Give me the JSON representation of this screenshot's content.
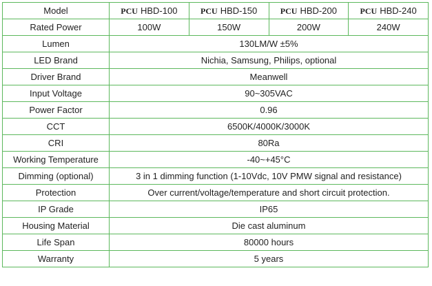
{
  "table": {
    "header": {
      "label": "Model",
      "models": [
        {
          "brand": "PCU",
          "name": "HBD-100"
        },
        {
          "brand": "PCU",
          "name": "HBD-150"
        },
        {
          "brand": "PCU",
          "name": "HBD-200"
        },
        {
          "brand": "PCU",
          "name": "HBD-240"
        }
      ]
    },
    "rows": [
      {
        "label": "Rated Power",
        "values": [
          "100W",
          "150W",
          "200W",
          "240W"
        ]
      },
      {
        "label": "Lumen",
        "values": [
          "130LM/W ±5%"
        ]
      },
      {
        "label": "LED Brand",
        "values": [
          "Nichia, Samsung, Philips, optional"
        ]
      },
      {
        "label": "Driver Brand",
        "values": [
          "Meanwell"
        ]
      },
      {
        "label": "Input Voltage",
        "values": [
          "90~305VAC"
        ]
      },
      {
        "label": "Power Factor",
        "values": [
          "0.96"
        ]
      },
      {
        "label": "CCT",
        "values": [
          "6500K/4000K/3000K"
        ]
      },
      {
        "label": "CRI",
        "values": [
          "80Ra"
        ]
      },
      {
        "label": "Working Temperature",
        "values": [
          "-40~+45°C"
        ]
      },
      {
        "label": "Dimming (optional)",
        "values": [
          "3 in 1 dimming function (1-10Vdc, 10V PMW signal and resistance)"
        ]
      },
      {
        "label": "Protection",
        "values": [
          "Over current/voltage/temperature and short circuit protection."
        ]
      },
      {
        "label": "IP Grade",
        "values": [
          "IP65"
        ]
      },
      {
        "label": "Housing Material",
        "values": [
          "Die cast aluminum"
        ]
      },
      {
        "label": "Life Span",
        "values": [
          "80000 hours"
        ]
      },
      {
        "label": "Warranty",
        "values": [
          "5 years"
        ]
      }
    ]
  }
}
